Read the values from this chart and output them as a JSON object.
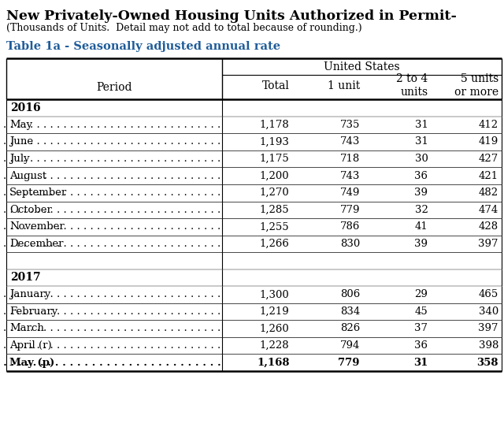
{
  "title": "New Privately-Owned Housing Units Authorized in Permit-",
  "subtitle": "(Thousands of Units.  Detail may not add to total because of rounding.)",
  "table_label": "Table 1a - Seasonally adjusted annual rate",
  "header_group": "United States",
  "col_headers_top": [
    "",
    "Total",
    "1 unit",
    "2 to 4\nunits",
    "5 units\nor more"
  ],
  "year_2016_label": "2016",
  "year_2017_label": "2017",
  "rows_2016": [
    [
      "May",
      "1,178",
      "735",
      "31",
      "412"
    ],
    [
      "June",
      "1,193",
      "743",
      "31",
      "419"
    ],
    [
      "July",
      "1,175",
      "718",
      "30",
      "427"
    ],
    [
      "August",
      "1,200",
      "743",
      "36",
      "421"
    ],
    [
      "September",
      "1,270",
      "749",
      "39",
      "482"
    ],
    [
      "October",
      "1,285",
      "779",
      "32",
      "474"
    ],
    [
      "November",
      "1,255",
      "786",
      "41",
      "428"
    ],
    [
      "December",
      "1,266",
      "830",
      "39",
      "397"
    ]
  ],
  "rows_2017": [
    [
      "January",
      "1,300",
      "806",
      "29",
      "465"
    ],
    [
      "February",
      "1,219",
      "834",
      "45",
      "340"
    ],
    [
      "March",
      "1,260",
      "826",
      "37",
      "397"
    ],
    [
      "April (r)",
      "1,228",
      "794",
      "36",
      "398"
    ],
    [
      "May (p)",
      "1,168",
      "779",
      "31",
      "358"
    ]
  ],
  "table_label_color": "#1F5C99",
  "background_color": "#ffffff"
}
